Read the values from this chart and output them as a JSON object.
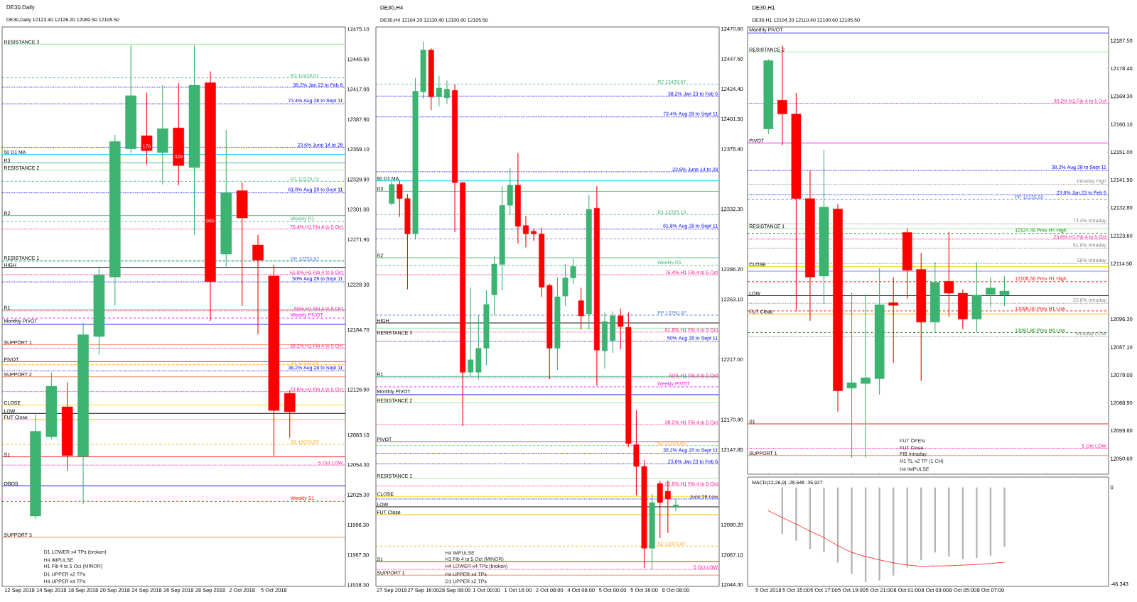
{
  "chart_data": [
    {
      "type": "candlestick",
      "title": "DE30,Daily",
      "subtitle": "DE30,Daily 12123.40 12126.20 12080.50 12105.50",
      "categories": [
        "12 Sep 2018",
        null,
        "14 Sep 2018",
        null,
        "18 Sep 2018",
        null,
        "20 Sep 2018",
        null,
        "24 Sep 2018",
        null,
        "26 Sep 2018",
        null,
        "28 Sep 2018",
        null,
        "2 Oct 2018",
        null,
        "5 Oct 2018",
        null,
        null,
        null,
        null
      ],
      "ohlc": [
        null,
        [
          12004.8,
          12103.0,
          12002.0,
          12086.8
        ],
        [
          12081.4,
          12143.5,
          12079.6,
          12130.2
        ],
        [
          12110.3,
          12133.8,
          12048.9,
          12063.3
        ],
        [
          12062.2,
          12191.6,
          12016.4,
          12180.0
        ],
        [
          12178.2,
          12245.7,
          12160.9,
          12237.8
        ],
        [
          12235.6,
          12373.2,
          12208.5,
          12366.7
        ],
        [
          12359.5,
          12459.6,
          12355.9,
          12410.8
        ],
        [
          12372.2,
          12413.7,
          12344.3,
          12357.7
        ],
        [
          12355.9,
          12420.9,
          12325.2,
          12379.0
        ],
        [
          12379.7,
          12422.7,
          12324.5,
          12343.3
        ],
        [
          12341.5,
          12459.6,
          12276.4,
          12420.9
        ],
        [
          12423.4,
          12434.3,
          12193.4,
          12231.3
        ],
        [
          12257.7,
          12377.6,
          12245.7,
          12317.3
        ],
        [
          12319.1,
          12327.0,
          12207.8,
          12292.7
        ],
        [
          12266.7,
          12276.4,
          12180.7,
          12251.9
        ],
        [
          12236.7,
          12247.5,
          12063.3,
          12106.7
        ],
        [
          12123.4,
          12126.2,
          12080.5,
          12105.5
        ],
        null,
        null,
        null
      ],
      "colors": [
        null,
        "#3cb371",
        "#3cb371",
        "#ff0000",
        "#3cb371",
        "#3cb371",
        "#3cb371",
        "#3cb371",
        "#ff0000",
        "#3cb371",
        "#ff0000",
        "#3cb371",
        "#ff0000",
        "#3cb371",
        "#ff0000",
        "#ff0000",
        "#ff0000",
        "#ff0000",
        null,
        null,
        null
      ],
      "ylim": [
        11936.9,
        12477.2
      ],
      "yticks": [
        {
          "value": 12475.1,
          "label": "12475.10"
        },
        {
          "value": 12445.9,
          "label": "12445.90"
        },
        {
          "value": 12417.0,
          "label": "12417.00"
        },
        {
          "value": 12387.9,
          "label": "12387.90"
        },
        {
          "value": 12359.1,
          "label": "12359.10"
        },
        {
          "value": 12329.9,
          "label": "12329.90"
        },
        {
          "value": 12301.0,
          "label": "12301.00"
        },
        {
          "value": 12271.9,
          "label": "12271.90"
        },
        {
          "value": 12228.3,
          "label": "12228.30"
        },
        {
          "value": 12184.7,
          "label": "12184.70"
        },
        {
          "value": 12126.9,
          "label": "12126.90"
        },
        {
          "value": 12083.1,
          "label": "12083.10"
        },
        {
          "value": 12054.3,
          "label": "12054.30"
        },
        {
          "value": 12025.3,
          "label": "12025.30"
        },
        {
          "value": 11996.3,
          "label": "11996.30"
        },
        {
          "value": 11967.3,
          "label": "11967.30"
        },
        {
          "value": 11938.3,
          "label": "11938.30"
        }
      ],
      "ref_lines": [
        {
          "axis": "y",
          "value": 12460.5,
          "label": "RESISTANCE 3",
          "color": "#90ee90",
          "line_style": "solid"
        },
        {
          "axis": "y",
          "value": 12354.0,
          "label": "50 D1 MA",
          "color": "#00bfff",
          "line_style": "solid"
        },
        {
          "axis": "y",
          "value": 12346.0,
          "label": "R3",
          "color": "#3cb371",
          "line_style": "solid"
        },
        {
          "axis": "y",
          "value": 12338.9,
          "label": "RESISTANCE 2",
          "color": "#90ee90",
          "line_style": "solid"
        },
        {
          "axis": "y",
          "value": 12295.0,
          "label": "R2",
          "color": "#3cb371",
          "line_style": "solid"
        },
        {
          "axis": "y",
          "value": 12289.0,
          "label": "Weekly R1",
          "color": "#3cb371",
          "line_style": "dashed"
        },
        {
          "axis": "y",
          "value": 12251.8,
          "label": "RESISTANCE 1",
          "color": "#90ee90",
          "line_style": "solid"
        },
        {
          "axis": "y",
          "value": 12245.0,
          "label": "HIGH",
          "color": "#000000",
          "line_style": "solid"
        },
        {
          "axis": "y",
          "value": 12204.0,
          "label": "R1",
          "color": "#3cb371",
          "line_style": "solid"
        },
        {
          "axis": "y",
          "value": 12196.0,
          "label": "Weekly PIVOT",
          "color": "#ff00ff",
          "line_style": "dashed"
        },
        {
          "axis": "y",
          "value": 12190.0,
          "label": "Monthly PIVOT",
          "color": "#0000ff",
          "line_style": "solid"
        },
        {
          "axis": "y",
          "value": 12170.3,
          "label": "SUPPORT 1",
          "color": "#ff7f50",
          "line_style": "solid"
        },
        {
          "axis": "y",
          "value": 12154.0,
          "label": "PIVOT",
          "color": "#ff00ff",
          "line_style": "solid"
        },
        {
          "axis": "y",
          "value": 12139.4,
          "label": "SUPPORT 2",
          "color": "#ff7f50",
          "line_style": "solid"
        },
        {
          "axis": "y",
          "value": 12112.0,
          "label": "CLOSE",
          "color": "#ffd700",
          "line_style": "solid"
        },
        {
          "axis": "y",
          "value": 12104.0,
          "label": "LOW",
          "color": "#000000",
          "line_style": "solid"
        },
        {
          "axis": "y",
          "value": 12098.0,
          "label": "FUT Close",
          "color": "#ffa500",
          "line_style": "solid"
        },
        {
          "axis": "y",
          "value": 12062.0,
          "label": "S1",
          "color": "#ff0000",
          "line_style": "solid"
        },
        {
          "axis": "y",
          "value": 12034.0,
          "label": "OBOS",
          "color": "#0000ff",
          "line_style": "solid"
        },
        {
          "axis": "y",
          "value": 12019.0,
          "label": "Weekly S1",
          "color": "#ff0000",
          "line_style": "dashed"
        },
        {
          "axis": "y",
          "value": 11984.3,
          "label": "SUPPORT 3",
          "color": "#ff7f50",
          "line_style": "solid"
        },
        {
          "axis": "y",
          "value": 12428.07,
          "label": "R2 12428.07",
          "color": "#3cb371",
          "line_style": "dashed"
        },
        {
          "axis": "y",
          "value": 12328.13,
          "label": "R1 12328.13",
          "color": "#3cb371",
          "line_style": "dashed"
        },
        {
          "axis": "y",
          "value": 12250.97,
          "label": "PP 12250.97",
          "color": "#4169e1",
          "line_style": "dashed"
        },
        {
          "axis": "y",
          "value": 12151.03,
          "label": "S1 12151.03",
          "color": "#ffa500",
          "line_style": "dashed"
        },
        {
          "axis": "y",
          "value": 12073.87,
          "label": "S2 12073.87",
          "color": "#ffa500",
          "line_style": "dashed"
        },
        {
          "axis": "y",
          "value": 12419.0,
          "label": "38.2% Jan 23 to Feb 6",
          "color": "#0000ff",
          "line_style": "dotted"
        },
        {
          "axis": "y",
          "value": 12403.0,
          "label": "73.4% Aug 28 to Sept 11",
          "color": "#0000ff",
          "line_style": "dotted"
        },
        {
          "axis": "y",
          "value": 12361.0,
          "label": "23.6% June 14 to 28",
          "color": "#0000ff",
          "line_style": "dotted"
        },
        {
          "axis": "y",
          "value": 12317.0,
          "label": "61.8% Aug 28 to Sept 11",
          "color": "#0000ff",
          "line_style": "dotted"
        },
        {
          "axis": "y",
          "value": 12282.0,
          "label": "76.4% H1 Fib 4 to 5 Oct",
          "color": "#ff1493",
          "line_style": "dotted"
        },
        {
          "axis": "y",
          "value": 12238.0,
          "label": "61.8% H1 Fib 4 to 5 Oct",
          "color": "#ff1493",
          "line_style": "dotted"
        },
        {
          "axis": "y",
          "value": 12231.0,
          "label": "50% Aug 28 to Sept 11",
          "color": "#0000ff",
          "line_style": "dotted"
        },
        {
          "axis": "y",
          "value": 12203.0,
          "label": "50% H1 Fib 4 to 5 Oct",
          "color": "#ff1493",
          "line_style": "dotted"
        },
        {
          "axis": "y",
          "value": 12167.0,
          "label": "38.2% H1 Fib 4 to 5 Oct",
          "color": "#ff1493",
          "line_style": "dotted"
        },
        {
          "axis": "y",
          "value": 12145.0,
          "label": "38.2% Aug 28 to Sept 11",
          "color": "#0000ff",
          "line_style": "dotted"
        },
        {
          "axis": "y",
          "value": 12125.0,
          "label": "23.6% H1 Fib 4 to 5 Oct",
          "color": "#ff1493",
          "line_style": "dotted"
        },
        {
          "axis": "y",
          "value": 12054.0,
          "label": "5 Oct LOW",
          "color": "#ff1493",
          "line_style": "dotted"
        }
      ],
      "annotations": [
        {
          "text": "176",
          "x": "24 Sep 2018",
          "y": 12362
        },
        {
          "text": "329",
          "x": "26 Sep 2018",
          "y": 12352
        },
        {
          "text": "980",
          "x": "28 Sep 2018",
          "y": 12290
        },
        "H4 UPPER x4 TPs",
        "D1 UPPER x2 TPs",
        "H1 Fib 4 to 5 Oct (MINOR)",
        "H4 IMPULSE",
        "D1 LOWER x4 TPs (broken)"
      ]
    },
    {
      "type": "candlestick",
      "title": "DE30,H4",
      "subtitle": "DE30,H4 12104.20 12110.40 12100.60 12105.50",
      "categories": [
        "27 Sep 2018",
        null,
        null,
        null,
        "27 Sep 16:00",
        null,
        null,
        null,
        "28 Sep 08:00",
        null,
        null,
        null,
        "1 Oct 00:00",
        null,
        null,
        null,
        "1 Oct 16:00",
        null,
        null,
        null,
        "2 Oct 08:00",
        null,
        null,
        null,
        "4 Oct 08:00",
        null,
        null,
        null,
        "5 Oct 00:00",
        null,
        null,
        null,
        "5 Oct 16:00",
        null,
        null,
        null,
        "8 Oct 08:00",
        null,
        null,
        null,
        null,
        null
      ],
      "ohlc": [
        [
          12336.6,
          12354.2,
          12335.2,
          12351.3
        ],
        [
          12351.3,
          12354.2,
          12326.4,
          12340.4
        ],
        [
          12340.4,
          12343.9,
          12270.9,
          12313.3
        ],
        [
          12313.3,
          12433.0,
          12308.9,
          12422.8
        ],
        [
          12422.2,
          12460.8,
          12417.0,
          12454.4
        ],
        [
          12454.4,
          12455.6,
          12408.2,
          12418.4
        ],
        [
          12418.4,
          12434.5,
          12411.0,
          12425.2
        ],
        [
          12417.6,
          12431.0,
          12413.0,
          12424.3
        ],
        [
          12423.4,
          12428.0,
          12314.7,
          12352.7
        ],
        [
          12352.7,
          12353.0,
          12166.0,
          12207.2
        ],
        [
          12207.2,
          12272.3,
          12204.3,
          12216.8
        ],
        [
          12207.2,
          12251.0,
          12201.6,
          12225.6
        ],
        [
          12225.6,
          12270.3,
          12212.7,
          12259.2
        ],
        [
          12266.5,
          12296.0,
          12251.0,
          12290.2
        ],
        [
          12289.9,
          12350.0,
          12270.0,
          12335.2
        ],
        [
          12335.2,
          12363.6,
          12328.0,
          12350.7
        ],
        [
          12350.7,
          12375.5,
          12306.0,
          12319.1
        ],
        [
          12319.7,
          12327.0,
          12303.0,
          12313.3
        ],
        [
          12315.3,
          12317.0,
          12308.0,
          12313.3
        ],
        [
          12313.3,
          12318.0,
          12265.0,
          12272.4
        ],
        [
          12273.8,
          12275.0,
          12202.0,
          12225.6
        ],
        [
          12225.6,
          12280.0,
          12209.0,
          12265.1
        ],
        [
          12265.6,
          12290.0,
          12258.0,
          12279.6
        ],
        [
          12279.6,
          12294.0,
          12275.0,
          12288.4
        ],
        [
          12262.1,
          12272.0,
          12240.0,
          12250.4
        ],
        [
          12251.9,
          12343.0,
          12240.0,
          12332.2
        ],
        [
          12333.1,
          12350.0,
          12197.0,
          12224.2
        ],
        [
          12223.6,
          12253.0,
          12210.0,
          12246.1
        ],
        [
          12231.5,
          12254.0,
          12222.0,
          12250.5
        ],
        [
          12250.5,
          12256.0,
          12225.0,
          12242.3
        ],
        [
          12241.7,
          12253.0,
          12150.0,
          12152.6
        ],
        [
          12151.7,
          12178.0,
          12113.0,
          12135.0
        ],
        [
          12135.0,
          12140.0,
          12057.0,
          12072.2
        ],
        [
          12072.2,
          12114.0,
          12056.0,
          12107.3
        ],
        [
          12121.9,
          12124.0,
          12080.0,
          12107.3
        ],
        [
          12116.0,
          12124.0,
          12084.0,
          12110.0
        ],
        [
          12104.2,
          12110.4,
          12100.6,
          12105.5
        ],
        null,
        null,
        null,
        null,
        null
      ],
      "colors": [
        "#3cb371",
        "#ff0000",
        "#ff0000",
        "#3cb371",
        "#3cb371",
        "#ff0000",
        "#3cb371",
        "#3cb371",
        "#ff0000",
        "#ff0000",
        "#3cb371",
        "#3cb371",
        "#3cb371",
        "#3cb371",
        "#3cb371",
        "#3cb371",
        "#ff0000",
        "#ff0000",
        "#ff0000",
        "#ff0000",
        "#ff0000",
        "#3cb371",
        "#3cb371",
        "#3cb371",
        "#ff0000",
        "#3cb371",
        "#ff0000",
        "#3cb371",
        "#3cb371",
        "#ff0000",
        "#ff0000",
        "#ff0000",
        "#ff0000",
        "#3cb371",
        "#ff0000",
        "#ff0000",
        "#3cb371",
        null,
        null,
        null,
        null,
        null
      ],
      "ylim": [
        12043.0,
        12472.0
      ],
      "yticks": [
        {
          "value": 12470.6,
          "label": "12470.60"
        },
        {
          "value": 12447.5,
          "label": "12447.50"
        },
        {
          "value": 12424.4,
          "label": "12424.40"
        },
        {
          "value": 12401.5,
          "label": "12401.50"
        },
        {
          "value": 12378.4,
          "label": "12378.40"
        },
        {
          "value": 12332.3,
          "label": "12332.30"
        },
        {
          "value": 12286.2,
          "label": "12286.20"
        },
        {
          "value": 12263.1,
          "label": "12263.10"
        },
        {
          "value": 12217.0,
          "label": "12217.00"
        },
        {
          "value": 12170.9,
          "label": "12170.90"
        },
        {
          "value": 12147.8,
          "label": "12147.80"
        },
        {
          "value": 12090.2,
          "label": "12090.20"
        },
        {
          "value": 12067.1,
          "label": "12067.10"
        },
        {
          "value": 12044.3,
          "label": "12044.30"
        }
      ],
      "ref_lines": [
        {
          "axis": "y",
          "value": 12354.0,
          "label": "50 D1 MA",
          "color": "#00bfff",
          "line_style": "solid"
        },
        {
          "axis": "y",
          "value": 12346.0,
          "label": "R3",
          "color": "#3cb371",
          "line_style": "solid"
        },
        {
          "axis": "y",
          "value": 12309.48,
          "color": "#9370db",
          "line_style": "dashed"
        },
        {
          "axis": "y",
          "value": 12295.0,
          "label": "R2",
          "color": "#3cb371",
          "line_style": "solid"
        },
        {
          "axis": "y",
          "value": 12289.0,
          "label": "Weekly R1",
          "color": "#3cb371",
          "line_style": "dashed"
        },
        {
          "axis": "y",
          "value": 12245.0,
          "label": "HIGH",
          "color": "#000000",
          "line_style": "solid"
        },
        {
          "axis": "y",
          "value": 12241.0,
          "label": "RESISTANCE 3",
          "color": "#90ee90",
          "line_style": "solid"
        },
        {
          "axis": "y",
          "value": 12204.0,
          "label": "R1",
          "color": "#3cb371",
          "line_style": "solid"
        },
        {
          "axis": "y",
          "value": 12196.0,
          "label": "Weekly PIVOT",
          "color": "#ff00ff",
          "line_style": "dashed"
        },
        {
          "axis": "y",
          "value": 12190.0,
          "label": "Monthly PIVOT",
          "color": "#0000ff",
          "line_style": "solid"
        },
        {
          "axis": "y",
          "value": 12183.8,
          "label": "RESISTANCE 2",
          "color": "#90ee90",
          "line_style": "solid"
        },
        {
          "axis": "y",
          "value": 12154.0,
          "label": "PIVOT",
          "color": "#ff00ff",
          "line_style": "solid"
        },
        {
          "axis": "y",
          "value": 12125.9,
          "label": "RESISTANCE 1",
          "color": "#90ee90",
          "line_style": "solid"
        },
        {
          "axis": "y",
          "value": 12112.0,
          "label": "CLOSE",
          "color": "#ffd700",
          "line_style": "solid"
        },
        {
          "axis": "y",
          "value": 12104.0,
          "label": "LOW",
          "color": "#000000",
          "line_style": "solid"
        },
        {
          "axis": "y",
          "value": 12098.0,
          "label": "FUT Close",
          "color": "#ffa500",
          "line_style": "solid"
        },
        {
          "axis": "y",
          "value": 12062.0,
          "label": "S1",
          "color": "#ff0000",
          "line_style": "solid"
        },
        {
          "axis": "y",
          "value": 12051.6,
          "label": "SUPPORT 1",
          "color": "#ff7f50",
          "line_style": "solid"
        },
        {
          "axis": "y",
          "value": 12428.07,
          "label": "R2 12428.07",
          "color": "#3cb371",
          "line_style": "dashed"
        },
        {
          "axis": "y",
          "value": 12328.13,
          "label": "R1 12328.13",
          "color": "#3cb371",
          "line_style": "dashed"
        },
        {
          "axis": "y",
          "value": 12250.97,
          "label": "PP 12250.97",
          "color": "#4169e1",
          "line_style": "dashed"
        },
        {
          "axis": "y",
          "value": 12151.03,
          "label": "S1 12151.03",
          "color": "#ffa500",
          "line_style": "dashed"
        },
        {
          "axis": "y",
          "value": 12073.87,
          "label": "S2 12073.87",
          "color": "#ffa500",
          "line_style": "dashed"
        },
        {
          "axis": "y",
          "value": 12419.0,
          "label": "38.2% Jan 23 to Feb 6",
          "color": "#0000ff",
          "line_style": "dotted"
        },
        {
          "axis": "y",
          "value": 12403.0,
          "label": "73.4% Aug 28 to Sept 11",
          "color": "#0000ff",
          "line_style": "dotted"
        },
        {
          "axis": "y",
          "value": 12361.0,
          "label": "23.6% June 14 to 28",
          "color": "#0000ff",
          "line_style": "dotted"
        },
        {
          "axis": "y",
          "value": 12317.0,
          "label": "61.8% Aug 28 to Sept 11",
          "color": "#0000ff",
          "line_style": "dotted"
        },
        {
          "axis": "y",
          "value": 12282.0,
          "label": "76.4% H1 Fib 4 to 5 Oct",
          "color": "#ff1493",
          "line_style": "dotted"
        },
        {
          "axis": "y",
          "value": 12238.0,
          "label": "61.8% H1 Fib 4 to 5 Oct",
          "color": "#ff1493",
          "line_style": "dotted"
        },
        {
          "axis": "y",
          "value": 12231.0,
          "label": "50% Aug 28 to Sept 11",
          "color": "#0000ff",
          "line_style": "dotted"
        },
        {
          "axis": "y",
          "value": 12203.0,
          "label": "50% H1 Fib 4 to 5 Oct",
          "color": "#ff1493",
          "line_style": "dotted"
        },
        {
          "axis": "y",
          "value": 12167.0,
          "label": "38.2% H1 Fib 4 to 5 Oct",
          "color": "#ff1493",
          "line_style": "dotted"
        },
        {
          "axis": "y",
          "value": 12145.0,
          "label": "38.2% Aug 28 to Sept 11",
          "color": "#0000ff",
          "line_style": "dotted"
        },
        {
          "axis": "y",
          "value": 12137.0,
          "label": "23.6% Jan 23 to Feb 6",
          "color": "#0000ff",
          "line_style": "dotted"
        },
        {
          "axis": "y",
          "value": 12120.0,
          "label": "23.6% H1 Fib 4 to 5 Oct",
          "color": "#ff1493",
          "line_style": "dotted"
        },
        {
          "axis": "y",
          "value": 12110.0,
          "label": "June 28 Low",
          "color": "#0000ff",
          "line_style": "dotted"
        },
        {
          "axis": "y",
          "value": 12056.0,
          "label": "5 Oct LOW",
          "color": "#ff1493",
          "line_style": "dotted"
        }
      ],
      "annotations": [
        "D1 UPPER x2 TPs",
        "H4 UPPER x4 TPs",
        "H4 LOWER x4 TPs (broken)",
        "H1 Fib 4 to 5 Oct (MINOR)",
        "H4 IMPULSE"
      ]
    },
    {
      "type": "candlestick",
      "title": "DE30,H1",
      "subtitle": "DE30,H1 12104.20 12110.40 12100.60 12105.50",
      "tick_labels": "y",
      "categories": [
        null,
        null,
        null,
        null,
        null,
        null,
        null,
        null,
        null,
        null,
        null,
        null,
        null,
        null,
        null,
        null,
        null,
        null,
        null,
        null,
        null,
        null,
        null,
        null,
        null
      ],
      "ohlc": [
        [
          12158.6,
          12181.5,
          12157.0,
          12181.0
        ],
        [
          12168.0,
          12186.0,
          12153.3,
          12163.5
        ],
        [
          12163.5,
          12170.4,
          12099.1,
          12135.8
        ],
        [
          12135.8,
          12145.0,
          12095.8,
          12110.1
        ],
        [
          12110.4,
          12151.7,
          12101.3,
          12133.0
        ],
        [
          12132.4,
          12134.0,
          12066.0,
          12072.8
        ],
        [
          12073.7,
          12105.0,
          12050.9,
          12075.5
        ],
        [
          12075.2,
          12104.5,
          12050.9,
          12077.1
        ],
        [
          12076.8,
          12113.0,
          12071.6,
          12101.0
        ],
        [
          12101.7,
          12110.0,
          12082.0,
          12100.8
        ],
        [
          12124.7,
          12126.0,
          12103.0,
          12112.3
        ],
        [
          12112.6,
          12118.0,
          12076.0,
          12095.3
        ],
        [
          12095.3,
          12115.0,
          12092.0,
          12108.4
        ],
        [
          12108.7,
          12124.8,
          12097.0,
          12104.8
        ],
        [
          12104.8,
          12106.0,
          12093.0,
          12096.3
        ],
        [
          12096.3,
          12115.0,
          12092.0,
          12104.2
        ],
        [
          12104.4,
          12110.0,
          12100.0,
          12106.5
        ],
        [
          12104.2,
          12110.4,
          12100.6,
          12105.5
        ],
        null,
        null,
        null,
        null,
        null,
        null,
        null
      ],
      "colors": [
        "#3cb371",
        "#ff0000",
        "#ff0000",
        "#ff0000",
        "#3cb371",
        "#ff0000",
        "#3cb371",
        "#3cb371",
        "#3cb371",
        "#ff0000",
        "#ff0000",
        "#ff0000",
        "#3cb371",
        "#ff0000",
        "#ff0000",
        "#3cb371",
        "#3cb371",
        "#3cb371",
        null,
        null,
        null,
        null,
        null,
        null,
        null
      ],
      "ylim": [
        12045.5,
        12192.0
      ],
      "yticks": [
        {
          "value": 12187.5,
          "label": "12187.50"
        },
        {
          "value": 12178.4,
          "label": "12178.40"
        },
        {
          "value": 12169.3,
          "label": "12169.30"
        },
        {
          "value": 12160.1,
          "label": "12160.10"
        },
        {
          "value": 12151.0,
          "label": "12151.00"
        },
        {
          "value": 12141.9,
          "label": "12141.90"
        },
        {
          "value": 12132.8,
          "label": "12132.80"
        },
        {
          "value": 12123.6,
          "label": "12123.60"
        },
        {
          "value": 12114.5,
          "label": "12114.50"
        },
        {
          "value": 12096.3,
          "label": "12096.30"
        },
        {
          "value": 12087.1,
          "label": "12087.10"
        },
        {
          "value": 12078.0,
          "label": "12078.00"
        },
        {
          "value": 12068.9,
          "label": "12068.90"
        },
        {
          "value": 12059.8,
          "label": "12059.80"
        },
        {
          "value": 12050.6,
          "label": "12050.60"
        }
      ],
      "ref_lines": [
        {
          "axis": "y",
          "value": 12190.0,
          "label": "Monthly PIVOT",
          "color": "#0000ff",
          "line_style": "solid"
        },
        {
          "axis": "y",
          "value": 12183.8,
          "label": "RESISTANCE 2",
          "color": "#90ee90",
          "line_style": "solid"
        },
        {
          "axis": "y",
          "value": 12154.0,
          "label": "PIVOT",
          "color": "#ff00ff",
          "line_style": "solid"
        },
        {
          "axis": "y",
          "value": 12125.95,
          "label": "RESISTANCE 1",
          "color": "#90ee90",
          "line_style": "solid"
        },
        {
          "axis": "y",
          "value": 12113.5,
          "label": "CLOSE",
          "color": "#ffd700",
          "line_style": "solid"
        },
        {
          "axis": "y",
          "value": 12112.0,
          "color": "#9370db",
          "line_style": "solid"
        },
        {
          "axis": "y",
          "value": 12104.0,
          "label": "LOW",
          "color": "#000000",
          "line_style": "solid"
        },
        {
          "axis": "y",
          "value": 12098.0,
          "label": "FUT Close",
          "color": "#ffa500",
          "line_style": "solid"
        },
        {
          "axis": "y",
          "value": 12062.0,
          "label": "S1",
          "color": "#ff0000",
          "line_style": "solid"
        },
        {
          "axis": "y",
          "value": 12051.6,
          "label": "SUPPORT 1",
          "color": "#ff7f50",
          "line_style": "solid"
        },
        {
          "axis": "y",
          "value": 12135.5,
          "label": "PP 12135.50",
          "color": "#4169e1",
          "line_style": "dashed"
        },
        {
          "axis": "y",
          "value": 12124.4,
          "label": "12124.40 Prev H4 High",
          "color": "#008000",
          "line_style": "dashed"
        },
        {
          "axis": "y",
          "value": 12108.56,
          "label": "12108.56 Prev H1 High",
          "color": "#ff0000",
          "line_style": "dashed"
        },
        {
          "axis": "y",
          "value": 12099.0,
          "label": "12099.00 Prev H1 Low",
          "color": "#ff0000",
          "line_style": "dashed"
        },
        {
          "axis": "y",
          "value": 12091.9,
          "label": "12091.90 Prev H4 Low",
          "color": "#008000",
          "line_style": "dashed"
        },
        {
          "axis": "y",
          "value": 12167.0,
          "label": "38.2% H1 Fib 4 to 5 Oct",
          "color": "#ff1493",
          "line_style": "dotted"
        },
        {
          "axis": "y",
          "value": 12145.0,
          "label": "38.2% Aug 28 to Sept 11",
          "color": "#0000ff",
          "line_style": "dotted"
        },
        {
          "axis": "y",
          "value": 12140.5,
          "label": "Intraday High",
          "color": "#808080",
          "line_style": "dotted"
        },
        {
          "axis": "y",
          "value": 12137.0,
          "label": "23.6% Jan 23 to Feb 6",
          "color": "#0000ff",
          "line_style": "dotted"
        },
        {
          "axis": "y",
          "value": 12127.5,
          "label": "73.4% Intraday",
          "color": "#808080",
          "line_style": "dotted"
        },
        {
          "axis": "y",
          "value": 12122.5,
          "label": "23.6% H1 Fib 4 to 5 Oct",
          "color": "#ff1493",
          "line_style": "dotted"
        },
        {
          "axis": "y",
          "value": 12119.5,
          "label": "61.8% Intraday",
          "color": "#808080",
          "line_style": "dotted"
        },
        {
          "axis": "y",
          "value": 12114.5,
          "label": "50% Intraday",
          "color": "#808080",
          "line_style": "dotted"
        },
        {
          "axis": "y",
          "value": 12101.5,
          "label": "23.6% Intraday",
          "color": "#808080",
          "line_style": "dotted"
        },
        {
          "axis": "y",
          "value": 12090.5,
          "label": "Intraday LOW",
          "color": "#808080",
          "line_style": "dotted"
        },
        {
          "axis": "y",
          "value": 12054.0,
          "label": "5 Oct LOW",
          "color": "#ff1493",
          "line_style": "dotted"
        }
      ],
      "annotations": [
        "H4 IMPULSE",
        "H1 TL x2 TP (1 CH)",
        "FIB Intraday",
        "FUT Close",
        "FUT OPEN"
      ]
    },
    {
      "type": "bar",
      "title": "MACD(12,26,9) -28.548 -35.927",
      "categories": [
        "5 Oct 2018",
        null,
        "5 Oct 15:00",
        null,
        "5 Oct 17:00",
        null,
        "5 Oct 19:00",
        null,
        "5 Oct 21:00",
        null,
        "8 Oct 01:00",
        null,
        "8 Oct 03:00",
        null,
        "8 Oct 05:00",
        null,
        "8 Oct 07:00",
        null,
        null,
        null,
        null,
        null,
        null,
        null,
        null
      ],
      "series": [
        {
          "color": "#b4b4b4",
          "values": [
            null,
            -22.4,
            -25.6,
            -29.6,
            -31.2,
            -36.0,
            -41.5,
            -45.5,
            -44.7,
            -42.3,
            -38.4,
            -34.8,
            -31.2,
            -33.2,
            -34.4,
            -33.9,
            -32.8,
            -28.5,
            null,
            null,
            null,
            null,
            null,
            null,
            null
          ]
        },
        {
          "type": "line",
          "color": "#ff0000",
          "line_style": "dotted",
          "values": [
            -11.2,
            -14.5,
            -17.6,
            -21.0,
            -24.0,
            -28.0,
            -31.2,
            -33.2,
            -34.8,
            -36.2,
            -37.2,
            -37.9,
            -37.7,
            -37.6,
            -37.3,
            -37.0,
            -36.5,
            -35.9,
            null,
            null,
            null,
            null,
            null,
            null,
            null
          ]
        }
      ],
      "ylim": [
        -47.5,
        5.0
      ],
      "yticks": [
        0,
        -46.343
      ]
    }
  ]
}
